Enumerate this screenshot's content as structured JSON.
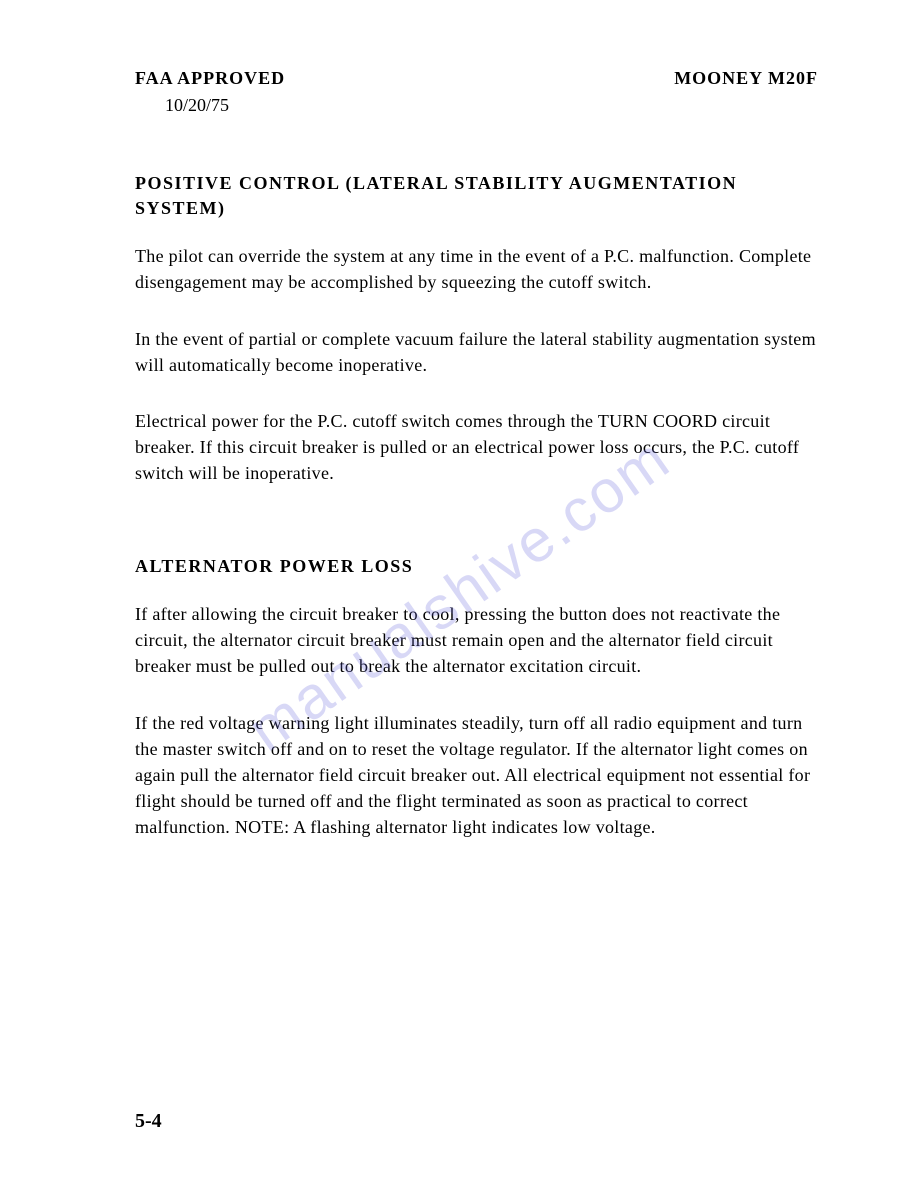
{
  "header": {
    "left": "FAA   APPROVED",
    "right": "MOONEY  M20F",
    "date": "10/20/75"
  },
  "sections": [
    {
      "heading": "POSITIVE  CONTROL  (LATERAL  STABILITY  AUGMENTATION SYSTEM)",
      "paragraphs": [
        "The pilot can override the system at any time in the event of a P.C. malfunction.  Complete disengagement may be accomplished by squeezing the cutoff switch.",
        "In the event of partial or complete vacuum failure the lateral stability augmentation system will automatically become inoperative.",
        "Electrical power for the P.C. cutoff switch comes through the TURN COORD circuit breaker.  If this circuit breaker is pulled or an electrical power loss occurs, the P.C. cutoff switch  will be inoperative."
      ]
    },
    {
      "heading": "ALTERNATOR   POWER   LOSS",
      "paragraphs": [
        "If after allowing the circuit breaker to cool, pressing the button does not reactivate the circuit, the alternator circuit breaker must remain open and the alternator field circuit breaker must be pulled out to break the alternator excitation circuit.",
        "If the red voltage warning light illuminates steadily, turn off all radio equipment and turn the master switch off and on to reset the voltage regulator.  If the alternator light comes on again pull the alternator field circuit breaker out. All electrical equipment not essential for flight should be turned off and the flight terminated as soon as practical to correct malfunction.  NOTE: A flashing alternator light indicates low voltage."
      ]
    }
  ],
  "page_number": "5-4",
  "watermark": "manualshive.com"
}
